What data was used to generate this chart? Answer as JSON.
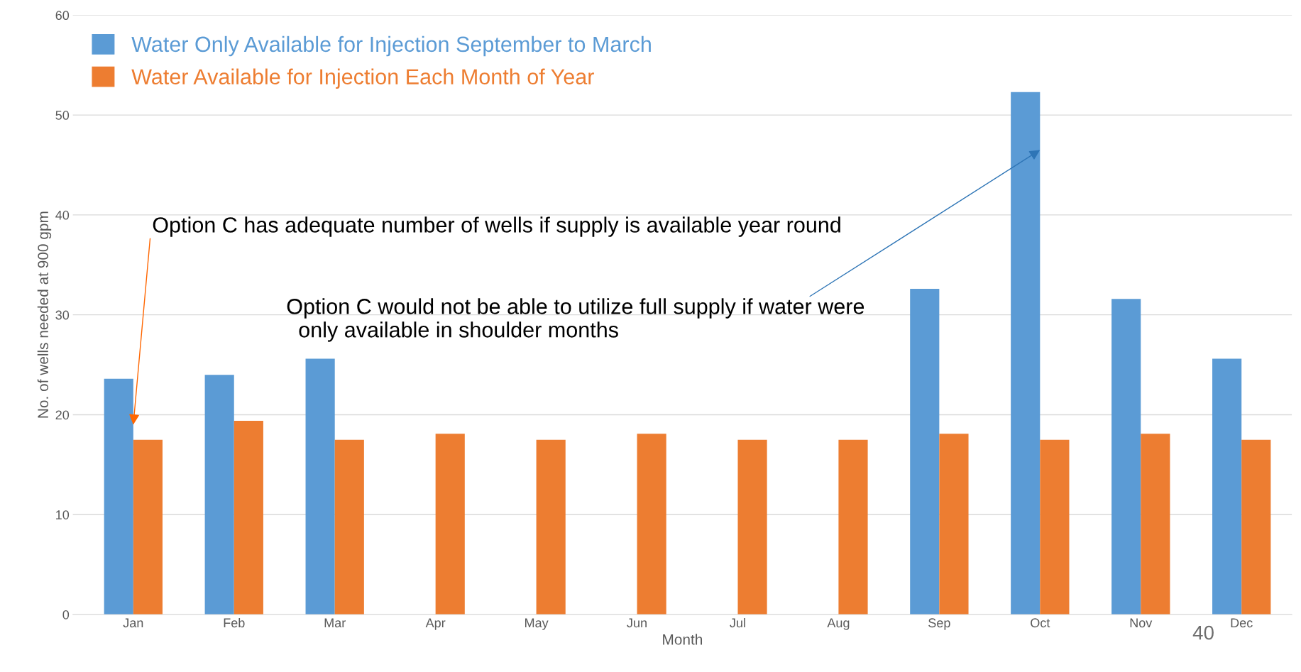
{
  "chart_data": {
    "type": "bar",
    "categories": [
      "Jan",
      "Feb",
      "Mar",
      "Apr",
      "May",
      "Jun",
      "Jul",
      "Aug",
      "Sep",
      "Oct",
      "Nov",
      "Dec"
    ],
    "series": [
      {
        "name": "Water Only Available for Injection September to March",
        "color": "#5b9bd5",
        "values": [
          23.6,
          24.0,
          25.6,
          null,
          null,
          null,
          null,
          null,
          32.6,
          52.3,
          31.6,
          25.6
        ]
      },
      {
        "name": "Water Available for Injection Each Month of Year",
        "color": "#ed7d31",
        "values": [
          17.5,
          19.4,
          17.5,
          18.1,
          17.5,
          18.1,
          17.5,
          17.5,
          18.1,
          17.5,
          18.1,
          17.5
        ]
      }
    ],
    "xlabel": "Month",
    "ylabel": "No. of wells needed at 900 gpm",
    "ylim": [
      0,
      60
    ],
    "yticks": [
      0,
      10,
      20,
      30,
      40,
      50,
      60
    ],
    "grid": "y",
    "legend": "top left",
    "annotations": [
      {
        "text": "Option C has adequate number of wells if supply is available year round",
        "x": "Jan",
        "y": 19
      },
      {
        "text": "Option C would not be able to utilize full supply if water were\n  only available in shoulder months",
        "x": "Oct",
        "y": 46.5
      },
      "40"
    ]
  }
}
